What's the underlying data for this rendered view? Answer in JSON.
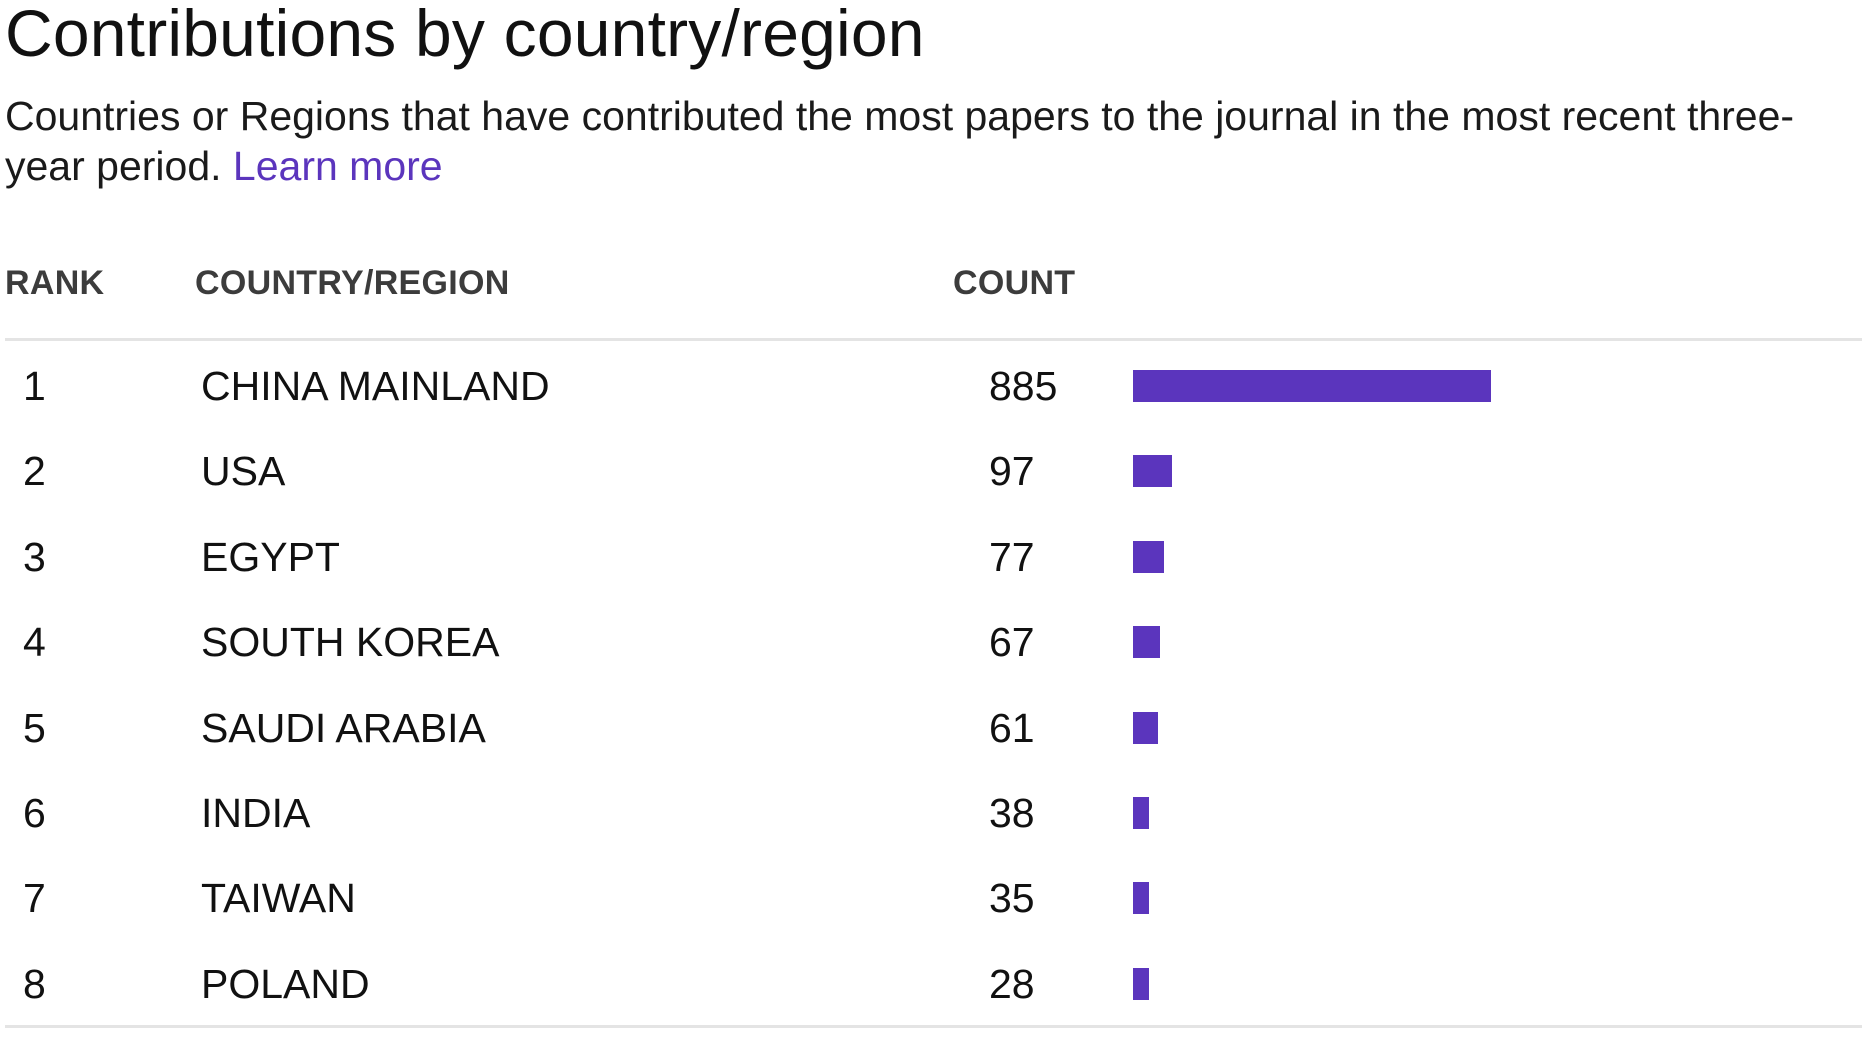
{
  "header": {
    "title": "Contributions by country/region",
    "description": "Countries or Regions that have contributed the most papers to the journal in the most recent three-year period.",
    "learn_more_label": "Learn more"
  },
  "colors": {
    "bar": "#5b35bd",
    "link": "#5b35bd",
    "divider": "#e4e4e4"
  },
  "chart_data": {
    "type": "table",
    "columns": [
      "RANK",
      "COUNTRY/REGION",
      "COUNT"
    ],
    "rows": [
      {
        "rank": "1",
        "country": "CHINA MAINLAND",
        "count": 885
      },
      {
        "rank": "2",
        "country": "USA",
        "count": 97
      },
      {
        "rank": "3",
        "country": "EGYPT",
        "count": 77
      },
      {
        "rank": "4",
        "country": "SOUTH KOREA",
        "count": 67
      },
      {
        "rank": "5",
        "country": "SAUDI ARABIA",
        "count": 61
      },
      {
        "rank": "6",
        "country": "INDIA",
        "count": 38
      },
      {
        "rank": "7",
        "country": "TAIWAN",
        "count": 35
      },
      {
        "rank": "8",
        "country": "POLAND",
        "count": 28
      }
    ],
    "bar_max": 885
  }
}
